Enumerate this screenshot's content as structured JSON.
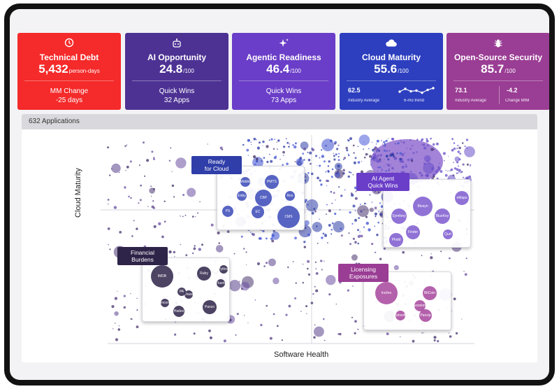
{
  "cards": [
    {
      "title": "Technical Debt",
      "value": "5,432",
      "unit": "person-days",
      "sub1": "MM Change",
      "sub2": "-25 days",
      "icon": "clock-icon",
      "color": "#f52a2a"
    },
    {
      "title": "AI Opportunity",
      "value": "24.8",
      "unit": "/100",
      "sub1": "Quick Wins",
      "sub2": "32 Apps",
      "icon": "robot-icon",
      "color": "#4d3294"
    },
    {
      "title": "Agentic Readiness",
      "value": "46.4",
      "unit": "/100",
      "sub1": "Quick Wins",
      "sub2": "73 Apps",
      "icon": "sparkle-icon",
      "color": "#6a3ec8"
    },
    {
      "title": "Cloud Maturity",
      "value": "55.6",
      "unit": "/100",
      "left_value": "62.5",
      "left_label": "Industry Average",
      "right_label": "6-mo trend",
      "trend": [
        0.6,
        0.2,
        0.55,
        0.45,
        0.75,
        0.35,
        0.1
      ],
      "icon": "cloud-icon",
      "color": "#2d3fbf"
    },
    {
      "title": "Open-Source Security",
      "value": "85.7",
      "unit": "/100",
      "left_value": "73.1",
      "left_label": "Industry Average",
      "right_value": "-4.2",
      "right_label": "Change MtM",
      "icon": "bug-icon",
      "color": "#9a3d94"
    }
  ],
  "panel": {
    "title": "632 Applications"
  },
  "axes": {
    "x_label": "Software Health",
    "y_label": "Cloud Maturity"
  },
  "quadrants": {
    "cloud": {
      "label": "Ready\nfor Cloud",
      "color": "#2f3ea8"
    },
    "ai": {
      "label": "AI Agent\nQuick Wins",
      "color": "#6a3ec8"
    },
    "fin": {
      "label": "Financial\nBurdens",
      "color": "#2e2348"
    },
    "lic": {
      "label": "Licensing\nExposures",
      "color": "#9a3d94"
    }
  },
  "zoom": {
    "cloud": [
      "Mobile",
      "PMTS",
      "Enby",
      "CBP",
      "Ros",
      "PS",
      "EC",
      "CMS"
    ],
    "ai": [
      "eMaps",
      "Biosyn",
      "Symfony",
      "BlueKey",
      "Finder",
      "Phidd",
      "Qurt"
    ],
    "fin": [
      "Python",
      "IMDB",
      "Ruby",
      "Fluent",
      "Chase",
      "PA",
      "Imcore",
      "Hades",
      "Panzo"
    ],
    "lic": [
      "BitCoin",
      "Incline",
      "Sessions",
      "Sinsoft",
      "Panzip"
    ]
  }
}
